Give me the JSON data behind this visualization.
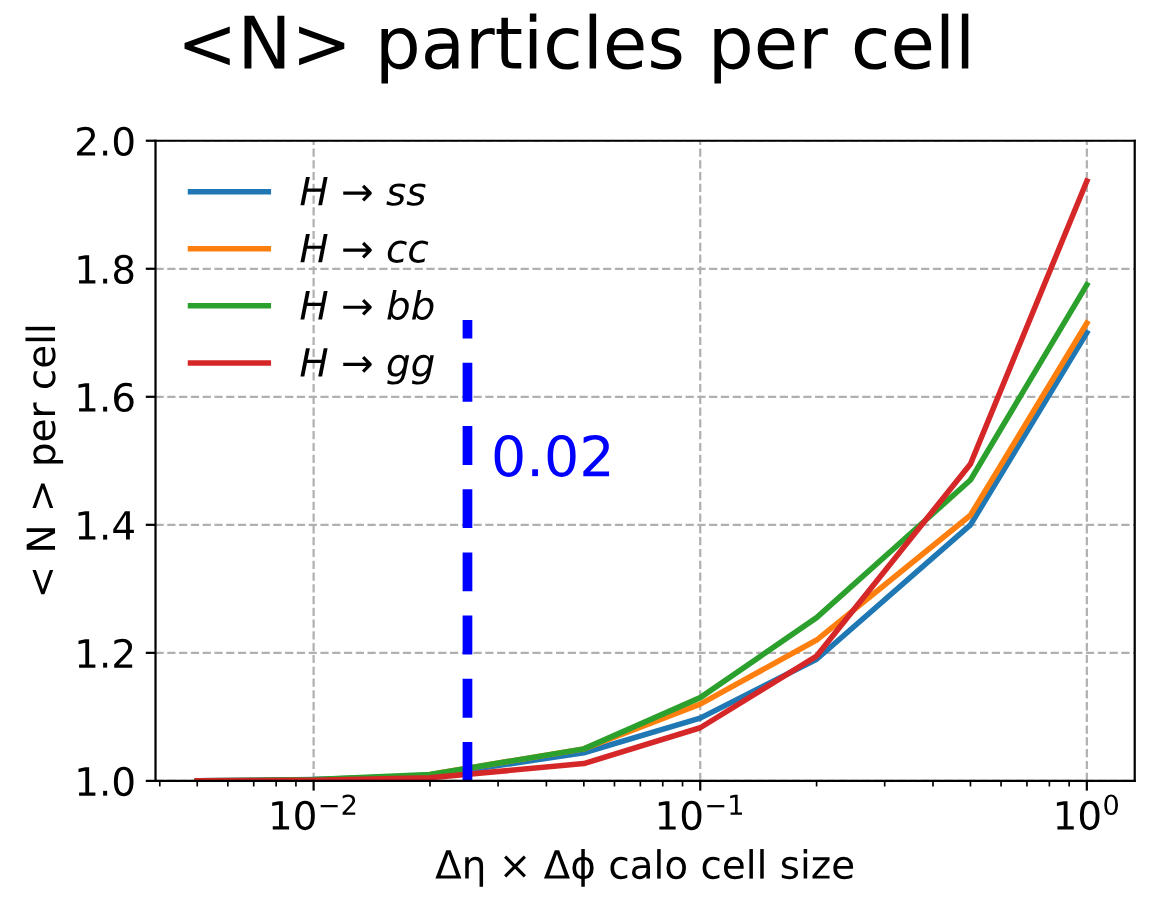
{
  "chart_data": {
    "type": "line",
    "title": "<N> particles per cell",
    "xlabel": "Δη × Δϕ calo cell size",
    "ylabel": "< N > per cell",
    "x": [
      0.005,
      0.01,
      0.02,
      0.05,
      0.1,
      0.2,
      0.5,
      1.0
    ],
    "series": [
      {
        "name": "H → ss",
        "color": "#1f77b4",
        "values": [
          1.0,
          1.002,
          1.008,
          1.044,
          1.098,
          1.19,
          1.4,
          1.7
        ]
      },
      {
        "name": "H → cc",
        "color": "#ff7f0e",
        "values": [
          null,
          null,
          1.01,
          1.05,
          1.12,
          1.22,
          1.415,
          1.715
        ]
      },
      {
        "name": "H → bb",
        "color": "#2ca02c",
        "values": [
          1.0,
          1.002,
          1.01,
          1.05,
          1.13,
          1.255,
          1.47,
          1.775
        ]
      },
      {
        "name": "H → gg",
        "color": "#d62728",
        "values": [
          1.0,
          1.001,
          1.005,
          1.027,
          1.083,
          1.195,
          1.495,
          1.937
        ]
      }
    ],
    "log": "x",
    "xlim": [
      0.0039,
      1.33
    ],
    "ylim": [
      1.0,
      2.0
    ],
    "xticks": [
      {
        "value": 0.01,
        "label": "10$^{−2}$"
      },
      {
        "value": 0.1,
        "label": "10$^{−1}$"
      },
      {
        "value": 1,
        "label": "10$^{0}$"
      }
    ],
    "yticks": [
      {
        "value": 1.0,
        "label": "1.0"
      },
      {
        "value": 1.2,
        "label": "1.2"
      },
      {
        "value": 1.4,
        "label": "1.4"
      },
      {
        "value": 1.6,
        "label": "1.6"
      },
      {
        "value": 1.8,
        "label": "1.8"
      },
      {
        "value": 2.0,
        "label": "2.0"
      }
    ],
    "ref_lines": [
      {
        "axis": "x",
        "value": 0.025,
        "label": "0.02",
        "color": "#0000ff",
        "line_style": "dashed"
      }
    ],
    "grid": true,
    "legend": "top left",
    "line_style": "solid",
    "marker": "none"
  }
}
